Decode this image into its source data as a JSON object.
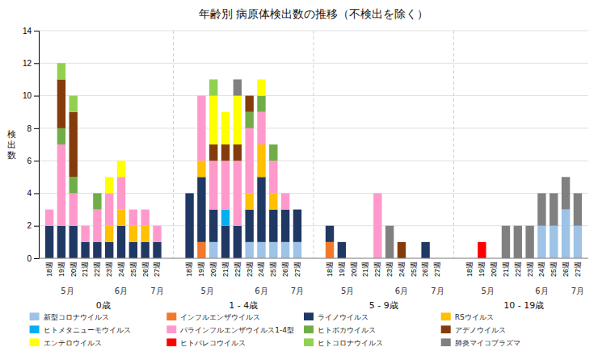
{
  "chart_data": {
    "type": "bar",
    "stacked": true,
    "grid": true,
    "legend": "bottom",
    "title": "年齢別 病原体検出数の推移（不検出を除く）",
    "ylabel": "検\n出\n数",
    "x_groups": [
      "0歳",
      "1 - 4歳",
      "5 - 9歳",
      "10 - 19歳"
    ],
    "annotations": [
      "5月",
      "6月",
      "7月",
      "5月",
      "6月",
      "7月",
      "5月",
      "6月",
      "7月",
      "5月",
      "6月",
      "7月"
    ],
    "categories": [
      "18週",
      "19週",
      "20週",
      "21週",
      "22週",
      "23週",
      "24週",
      "25週",
      "26週",
      "27週",
      "18週",
      "19週",
      "20週",
      "21週",
      "22週",
      "23週",
      "24週",
      "25週",
      "26週",
      "27週",
      "18週",
      "19週",
      "20週",
      "21週",
      "22週",
      "23週",
      "24週",
      "25週",
      "26週",
      "27週",
      "18週",
      "19週",
      "20週",
      "21週",
      "22週",
      "23週",
      "24週",
      "25週",
      "26週",
      "27週"
    ],
    "series": [
      {
        "name": "新型コロナウイルス",
        "color": "#9DC3E6",
        "values": [
          0,
          0,
          0,
          0,
          0,
          0,
          0,
          0,
          0,
          0,
          0,
          0,
          1,
          0,
          0,
          1,
          1,
          1,
          1,
          1,
          0,
          0,
          0,
          0,
          0,
          0,
          0,
          0,
          0,
          0,
          0,
          0,
          0,
          0,
          0,
          0,
          2,
          2,
          3,
          2
        ]
      },
      {
        "name": "インフルエンザウイルス",
        "color": "#F4782A",
        "values": [
          0,
          0,
          0,
          0,
          0,
          0,
          0,
          0,
          0,
          0,
          0,
          1,
          0,
          0,
          0,
          0,
          0,
          0,
          0,
          0,
          1,
          0,
          0,
          0,
          0,
          0,
          0,
          0,
          0,
          0,
          0,
          0,
          0,
          0,
          0,
          0,
          0,
          0,
          0,
          0
        ]
      },
      {
        "name": "ライノウイルス",
        "color": "#203864",
        "values": [
          2,
          2,
          2,
          1,
          1,
          1,
          2,
          1,
          1,
          1,
          4,
          4,
          2,
          2,
          2,
          2,
          4,
          2,
          2,
          2,
          1,
          1,
          0,
          0,
          0,
          0,
          0,
          0,
          1,
          0,
          0,
          0,
          0,
          0,
          0,
          0,
          0,
          0,
          0,
          0
        ]
      },
      {
        "name": "RSウイルス",
        "color": "#FFC000",
        "values": [
          0,
          0,
          0,
          0,
          0,
          1,
          1,
          1,
          1,
          0,
          0,
          1,
          0,
          0,
          0,
          1,
          2,
          1,
          0,
          0,
          0,
          0,
          0,
          0,
          0,
          0,
          0,
          0,
          0,
          0,
          0,
          0,
          0,
          0,
          0,
          0,
          0,
          0,
          0,
          0
        ]
      },
      {
        "name": "ヒトメタニューモウイルス",
        "color": "#00B0F0",
        "values": [
          0,
          0,
          0,
          0,
          0,
          0,
          0,
          0,
          0,
          0,
          0,
          0,
          0,
          1,
          0,
          0,
          0,
          0,
          0,
          0,
          0,
          0,
          0,
          0,
          0,
          0,
          0,
          0,
          0,
          0,
          0,
          0,
          0,
          0,
          0,
          0,
          0,
          0,
          0,
          0
        ]
      },
      {
        "name": "パラインフルエンザウイルス1-4型",
        "color": "#FF99CC",
        "values": [
          1,
          5,
          2,
          1,
          2,
          2,
          2,
          1,
          1,
          1,
          0,
          4,
          3,
          3,
          4,
          4,
          2,
          2,
          1,
          0,
          0,
          0,
          0,
          0,
          4,
          0,
          0,
          0,
          0,
          0,
          0,
          0,
          0,
          0,
          0,
          0,
          0,
          0,
          0,
          0
        ]
      },
      {
        "name": "ヒトボカウイルス",
        "color": "#70AD47",
        "values": [
          0,
          1,
          1,
          0,
          1,
          0,
          0,
          0,
          0,
          0,
          0,
          0,
          0,
          0,
          0,
          1,
          1,
          1,
          0,
          0,
          0,
          0,
          0,
          0,
          0,
          0,
          0,
          0,
          0,
          0,
          0,
          0,
          0,
          0,
          0,
          0,
          0,
          0,
          0,
          0
        ]
      },
      {
        "name": "アデノウイルス",
        "color": "#843C0C",
        "values": [
          0,
          3,
          4,
          0,
          0,
          0,
          0,
          0,
          0,
          0,
          0,
          0,
          1,
          1,
          1,
          1,
          0,
          0,
          0,
          0,
          0,
          0,
          0,
          0,
          0,
          0,
          1,
          0,
          0,
          0,
          0,
          0,
          0,
          0,
          0,
          0,
          0,
          0,
          0,
          0
        ]
      },
      {
        "name": "エンテロウイルス",
        "color": "#FFFF00",
        "values": [
          0,
          0,
          0,
          0,
          0,
          1,
          1,
          0,
          0,
          0,
          0,
          0,
          3,
          2,
          3,
          0,
          1,
          0,
          0,
          0,
          0,
          0,
          0,
          0,
          0,
          0,
          0,
          0,
          0,
          0,
          0,
          0,
          0,
          0,
          0,
          0,
          0,
          0,
          0,
          0
        ]
      },
      {
        "name": "ヒトパレコウイルス",
        "color": "#FF0000",
        "values": [
          0,
          0,
          0,
          0,
          0,
          0,
          0,
          0,
          0,
          0,
          0,
          0,
          0,
          0,
          0,
          0,
          0,
          0,
          0,
          0,
          0,
          0,
          0,
          0,
          0,
          0,
          0,
          0,
          0,
          0,
          0,
          1,
          0,
          0,
          0,
          0,
          0,
          0,
          0,
          0
        ]
      },
      {
        "name": "ヒトコロナウイルス",
        "color": "#92D050",
        "values": [
          0,
          1,
          1,
          0,
          0,
          0,
          0,
          0,
          0,
          0,
          0,
          0,
          1,
          0,
          0,
          0,
          0,
          0,
          0,
          0,
          0,
          0,
          0,
          0,
          0,
          0,
          0,
          0,
          0,
          0,
          0,
          0,
          0,
          0,
          0,
          0,
          0,
          0,
          0,
          0
        ]
      },
      {
        "name": "肺炎マイコプラズマ",
        "color": "#808080",
        "values": [
          0,
          0,
          0,
          0,
          0,
          0,
          0,
          0,
          0,
          0,
          0,
          0,
          0,
          0,
          1,
          0,
          0,
          0,
          0,
          0,
          0,
          0,
          0,
          0,
          0,
          2,
          0,
          0,
          0,
          0,
          0,
          0,
          0,
          2,
          2,
          2,
          2,
          2,
          2,
          2
        ]
      }
    ],
    "ylim": [
      0,
      14
    ],
    "yticks": [
      0,
      2,
      4,
      6,
      8,
      10,
      12,
      14
    ]
  }
}
